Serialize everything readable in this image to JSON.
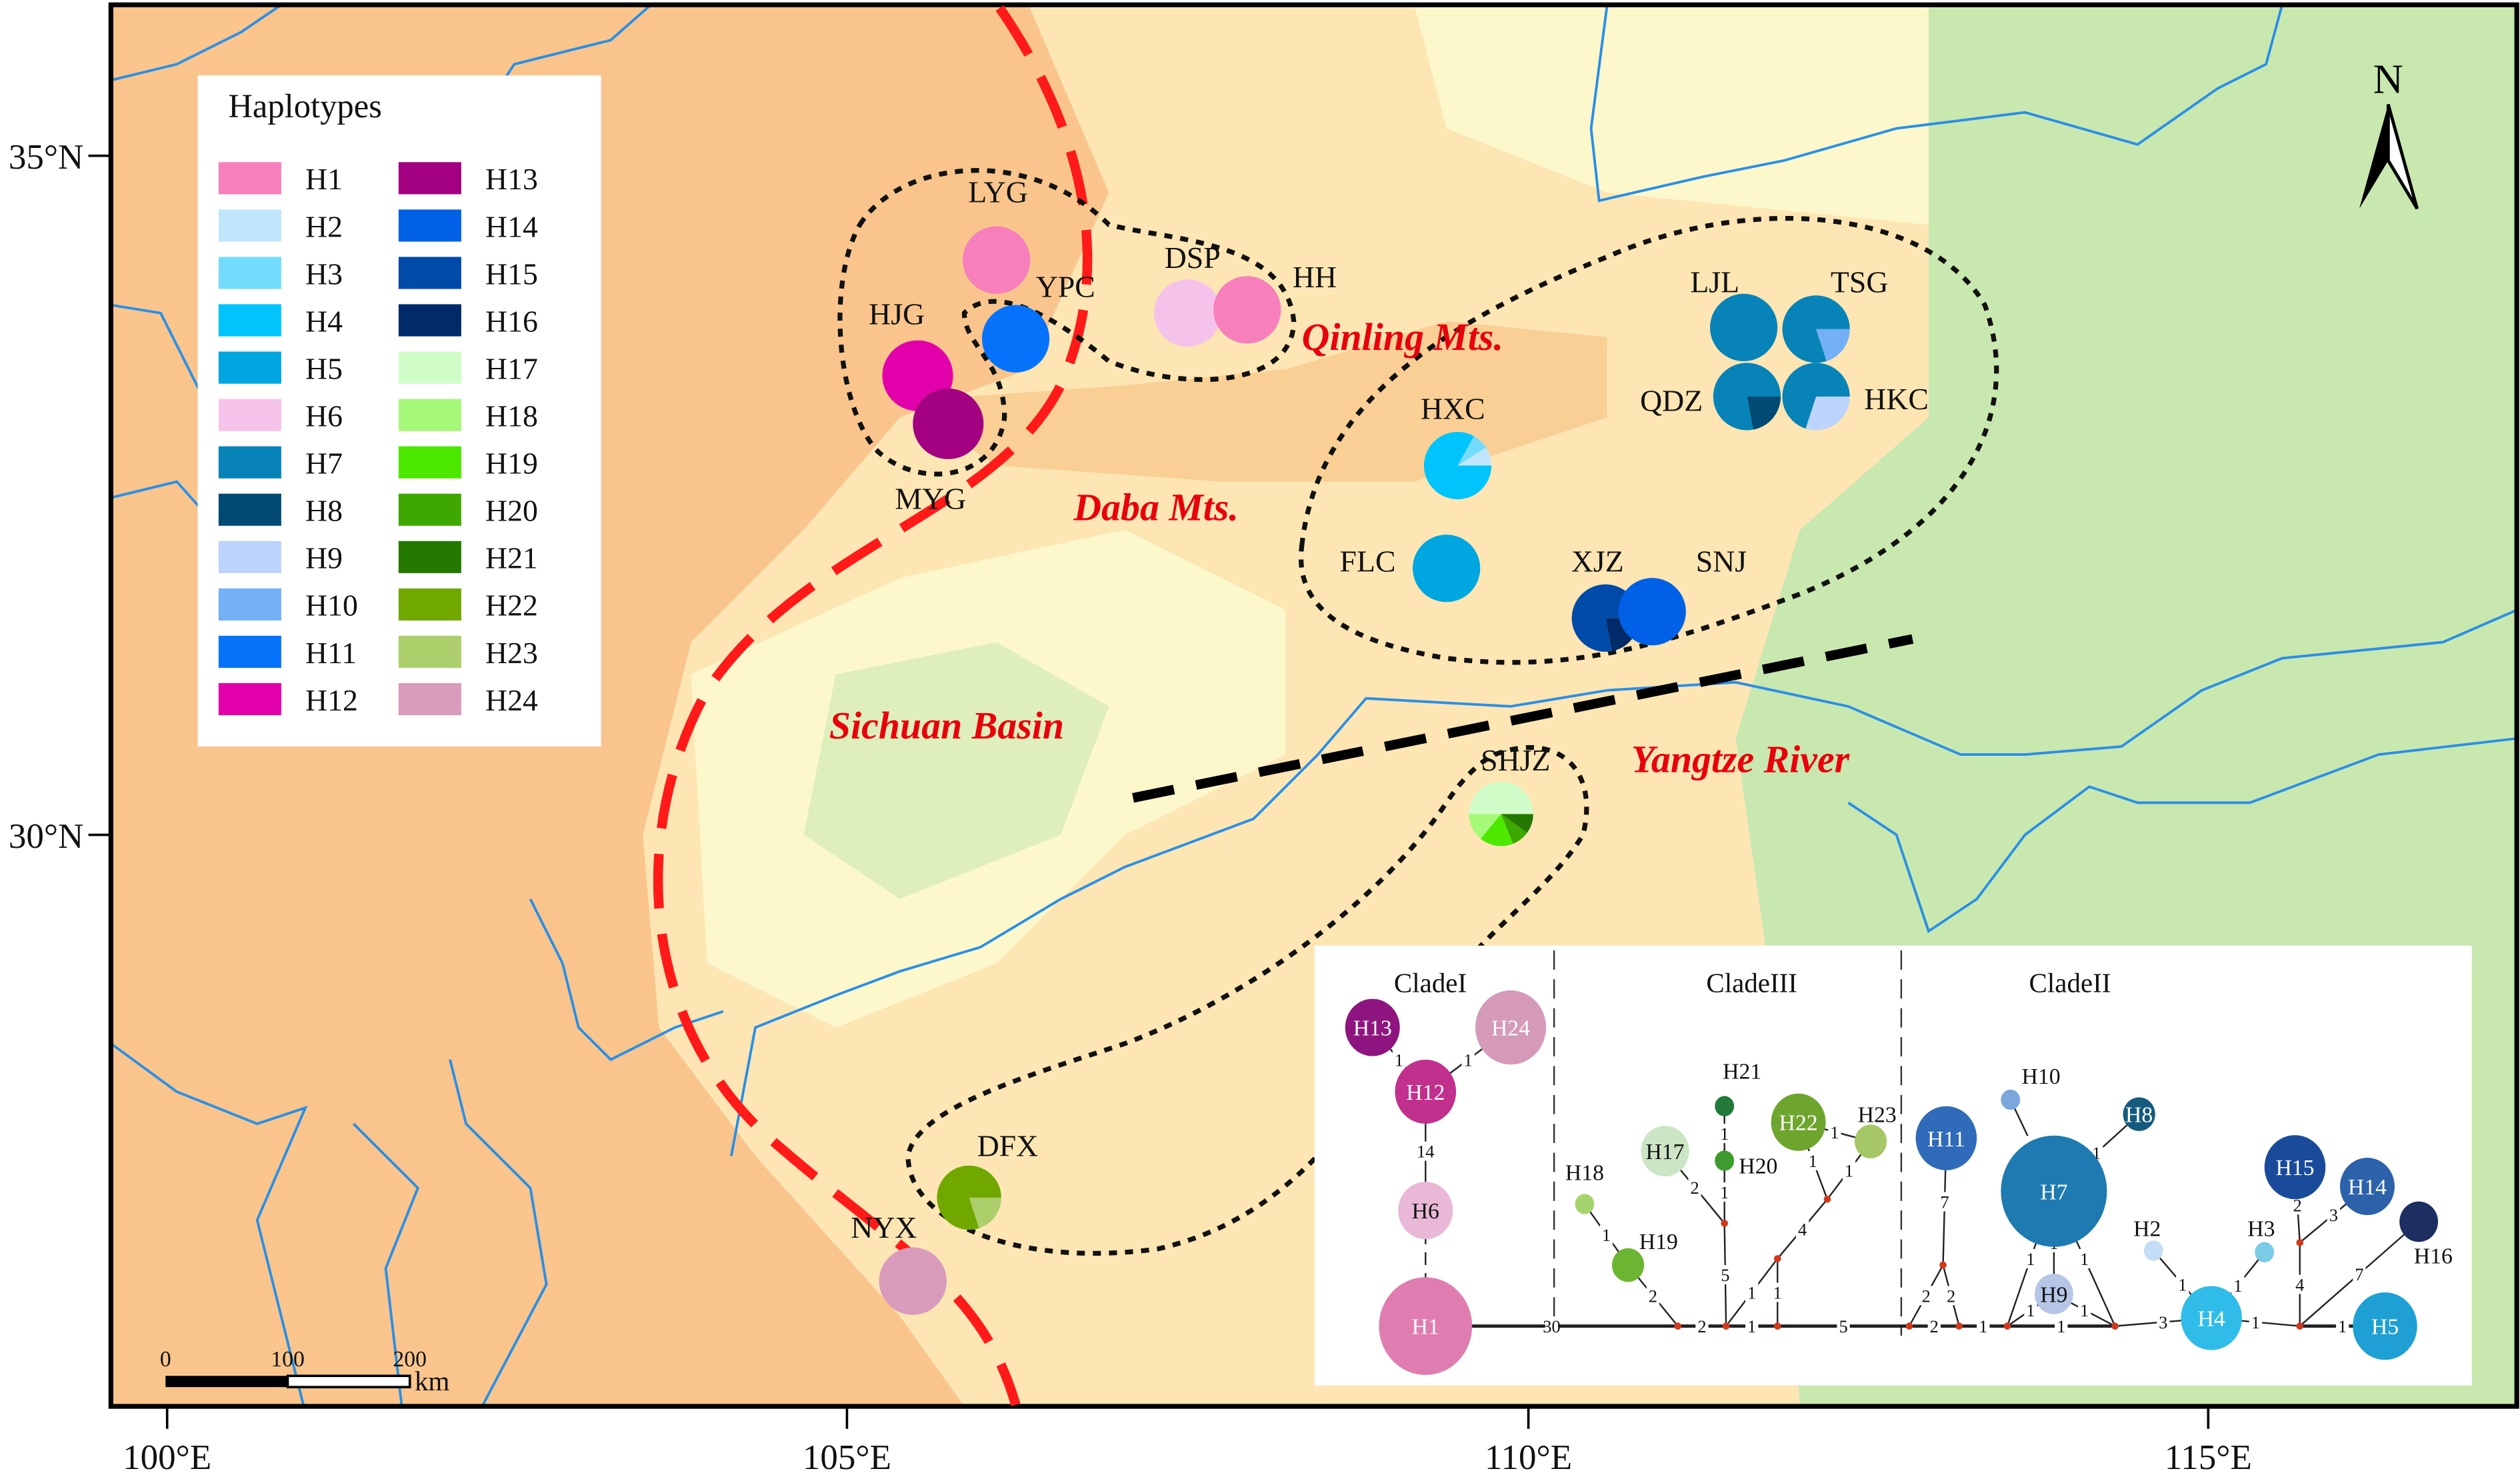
{
  "axes": {
    "lat_labels": [
      "35°N",
      "30°N"
    ],
    "lon_labels": [
      "100°E",
      "105°E",
      "110°E",
      "115°E"
    ]
  },
  "north_arrow": {
    "label": "N"
  },
  "scale_bar": {
    "labels": [
      "0",
      "100",
      "200"
    ],
    "unit": "km"
  },
  "region_labels": {
    "qinling": "Qinling Mts.",
    "daba": "Daba Mts.",
    "sichuan": "Sichuan Basin",
    "yangtze": "Yangtze River"
  },
  "colors": {
    "boundary_line": "#ff1a1a",
    "barrier_line": "#000000",
    "river": "#2a8fe6"
  },
  "legend": {
    "title": "Haplotypes",
    "haplotypes": [
      {
        "id": "H1",
        "color": "#f77fbc"
      },
      {
        "id": "H2",
        "color": "#bfe6fb"
      },
      {
        "id": "H3",
        "color": "#73dcfc"
      },
      {
        "id": "H4",
        "color": "#00c4fb"
      },
      {
        "id": "H5",
        "color": "#00a6e0"
      },
      {
        "id": "H6",
        "color": "#f5c3ea"
      },
      {
        "id": "H7",
        "color": "#0883b8"
      },
      {
        "id": "H8",
        "color": "#004a73"
      },
      {
        "id": "H9",
        "color": "#bcd3fb"
      },
      {
        "id": "H10",
        "color": "#73b0f5"
      },
      {
        "id": "H11",
        "color": "#0672fa"
      },
      {
        "id": "H12",
        "color": "#e200aa"
      },
      {
        "id": "H13",
        "color": "#a20080"
      },
      {
        "id": "H14",
        "color": "#0060e6"
      },
      {
        "id": "H15",
        "color": "#004aa8"
      },
      {
        "id": "H16",
        "color": "#002a68"
      },
      {
        "id": "H17",
        "color": "#d0fcc8"
      },
      {
        "id": "H18",
        "color": "#a6f878"
      },
      {
        "id": "H19",
        "color": "#4ce800"
      },
      {
        "id": "H20",
        "color": "#3ea800"
      },
      {
        "id": "H21",
        "color": "#247800"
      },
      {
        "id": "H22",
        "color": "#70a800"
      },
      {
        "id": "H23",
        "color": "#accf6c"
      },
      {
        "id": "H24",
        "color": "#d89bba"
      }
    ]
  },
  "sites": [
    {
      "name": "LYG",
      "composition": [
        {
          "haplotype": "H1",
          "fraction": 1
        }
      ]
    },
    {
      "name": "YPC",
      "composition": [
        {
          "haplotype": "H11",
          "fraction": 1
        }
      ]
    },
    {
      "name": "HJG",
      "composition": [
        {
          "haplotype": "H12",
          "fraction": 1
        }
      ]
    },
    {
      "name": "MYG",
      "composition": [
        {
          "haplotype": "H13",
          "fraction": 1
        }
      ]
    },
    {
      "name": "DSP",
      "composition": [
        {
          "haplotype": "H6",
          "fraction": 1
        }
      ]
    },
    {
      "name": "HH",
      "composition": [
        {
          "haplotype": "H1",
          "fraction": 1
        }
      ]
    },
    {
      "name": "LJL",
      "composition": [
        {
          "haplotype": "H7",
          "fraction": 1
        }
      ]
    },
    {
      "name": "TSG",
      "composition": [
        {
          "haplotype": "H10",
          "fraction": 0.2
        },
        {
          "haplotype": "H7",
          "fraction": 0.8
        }
      ]
    },
    {
      "name": "QDZ",
      "composition": [
        {
          "haplotype": "H8",
          "fraction": 0.22
        },
        {
          "haplotype": "H7",
          "fraction": 0.78
        }
      ]
    },
    {
      "name": "HKC",
      "composition": [
        {
          "haplotype": "H9",
          "fraction": 0.3
        },
        {
          "haplotype": "H7",
          "fraction": 0.7
        }
      ]
    },
    {
      "name": "HXC",
      "composition": [
        {
          "haplotype": "H4",
          "fraction": 0.83
        },
        {
          "haplotype": "H3",
          "fraction": 0.08
        },
        {
          "haplotype": "H2",
          "fraction": 0.09
        }
      ]
    },
    {
      "name": "FLC",
      "composition": [
        {
          "haplotype": "H5",
          "fraction": 1
        }
      ]
    },
    {
      "name": "XJZ",
      "composition": [
        {
          "haplotype": "H16",
          "fraction": 0.22
        },
        {
          "haplotype": "H15",
          "fraction": 0.78
        }
      ]
    },
    {
      "name": "SNJ",
      "composition": [
        {
          "haplotype": "H14",
          "fraction": 1
        }
      ]
    },
    {
      "name": "SHJZ",
      "composition": [
        {
          "haplotype": "H21",
          "fraction": 0.1
        },
        {
          "haplotype": "H20",
          "fraction": 0.09
        },
        {
          "haplotype": "H19",
          "fraction": 0.17
        },
        {
          "haplotype": "H18",
          "fraction": 0.14
        },
        {
          "haplotype": "H17",
          "fraction": 0.5
        }
      ]
    },
    {
      "name": "DFX",
      "composition": [
        {
          "haplotype": "H23",
          "fraction": 0.2
        },
        {
          "haplotype": "H22",
          "fraction": 0.8
        }
      ]
    },
    {
      "name": "NYX",
      "composition": [
        {
          "haplotype": "H24",
          "fraction": 1
        }
      ]
    }
  ],
  "network": {
    "clades": [
      "CladeI",
      "CladeIII",
      "CladeII"
    ],
    "nodes": [
      {
        "id": "H1",
        "color": "#e07db0"
      },
      {
        "id": "H6",
        "color": "#e8b8d6"
      },
      {
        "id": "H12",
        "color": "#c2308e"
      },
      {
        "id": "H13",
        "color": "#8e1580"
      },
      {
        "id": "H24",
        "color": "#d49ab8"
      },
      {
        "id": "H17",
        "color": "#cce5c4"
      },
      {
        "id": "H18",
        "color": "#a6d46c"
      },
      {
        "id": "H19",
        "color": "#6cb530"
      },
      {
        "id": "H20",
        "color": "#3e9c2e"
      },
      {
        "id": "H21",
        "color": "#217a3a"
      },
      {
        "id": "H22",
        "color": "#6ea52e"
      },
      {
        "id": "H23",
        "color": "#a6c766"
      },
      {
        "id": "H11",
        "color": "#2f6bb8"
      },
      {
        "id": "H7",
        "color": "#1e7ab0"
      },
      {
        "id": "H8",
        "color": "#165a7e"
      },
      {
        "id": "H9",
        "color": "#b5c6e6"
      },
      {
        "id": "H10",
        "color": "#7aa8dc"
      },
      {
        "id": "H2",
        "color": "#c3def4"
      },
      {
        "id": "H3",
        "color": "#7ccbe6"
      },
      {
        "id": "H4",
        "color": "#30bce8"
      },
      {
        "id": "H5",
        "color": "#1ea0d4"
      },
      {
        "id": "H14",
        "color": "#2c62aa"
      },
      {
        "id": "H15",
        "color": "#1a4b9a"
      },
      {
        "id": "H16",
        "color": "#1c2f60"
      }
    ],
    "edges": [
      {
        "from": "H1",
        "to": "mv1",
        "mutations": "30"
      },
      {
        "from": "mv1",
        "to": "mv2",
        "mutations": "2"
      },
      {
        "from": "mv2",
        "to": "mv3",
        "mutations": "1"
      },
      {
        "from": "mv3",
        "to": "mv4",
        "mutations": "5"
      },
      {
        "from": "mv4",
        "to": "mv5",
        "mutations": "2"
      },
      {
        "from": "mv5",
        "to": "mv6",
        "mutations": "1"
      },
      {
        "from": "mv6",
        "to": "mv7",
        "mutations": "1"
      },
      {
        "from": "mv7",
        "to": "H4",
        "mutations": "3"
      },
      {
        "from": "H4",
        "to": "mv8",
        "mutations": "1"
      },
      {
        "from": "mv8",
        "to": "H5",
        "mutations": "1"
      },
      {
        "from": "H19",
        "to": "mv1",
        "mutations": "2"
      },
      {
        "from": "H18",
        "to": "H19",
        "mutations": "1"
      },
      {
        "from": "H17",
        "to": "mvA",
        "mutations": "2"
      },
      {
        "from": "H21",
        "to": "H20",
        "mutations": "1"
      },
      {
        "from": "H20",
        "to": "mvA",
        "mutations": "1"
      },
      {
        "from": "mvA",
        "to": "mv2",
        "mutations": "5"
      },
      {
        "from": "mv2",
        "to": "mvB",
        "mutations": "1"
      },
      {
        "from": "mv3",
        "to": "mvB",
        "mutations": "1"
      },
      {
        "from": "mvB",
        "to": "mvC",
        "mutations": "4"
      },
      {
        "from": "mvC",
        "to": "H22",
        "mutations": "1"
      },
      {
        "from": "mvC",
        "to": "H23",
        "mutations": "1"
      },
      {
        "from": "H22",
        "to": "H23",
        "mutations": "1"
      },
      {
        "from": "H11",
        "to": "mvD",
        "mutations": "7"
      },
      {
        "from": "mvD",
        "to": "mv4",
        "mutations": "2"
      },
      {
        "from": "mvD",
        "to": "mv5",
        "mutations": "2"
      },
      {
        "from": "H7",
        "to": "mv6",
        "mutations": "1"
      },
      {
        "from": "H7",
        "to": "mv7",
        "mutations": "1"
      },
      {
        "from": "H7",
        "to": "H9",
        "mutations": "1"
      },
      {
        "from": "H9",
        "to": "mv6",
        "mutations": "1"
      },
      {
        "from": "H9",
        "to": "mv7",
        "mutations": "1"
      },
      {
        "from": "H10",
        "to": "H7",
        "mutations": "1"
      },
      {
        "from": "H8",
        "to": "H7",
        "mutations": "1"
      },
      {
        "from": "H2",
        "to": "H4",
        "mutations": "1"
      },
      {
        "from": "H3",
        "to": "H4",
        "mutations": "1"
      },
      {
        "from": "mv8",
        "to": "mvE",
        "mutations": "4"
      },
      {
        "from": "mvE",
        "to": "H15",
        "mutations": "2"
      },
      {
        "from": "mvE",
        "to": "H14",
        "mutations": "3"
      },
      {
        "from": "mv8",
        "to": "H16",
        "mutations": "7"
      },
      {
        "from": "H13",
        "to": "H12",
        "mutations": "1"
      },
      {
        "from": "H24",
        "to": "H12",
        "mutations": "1"
      },
      {
        "from": "H12",
        "to": "H6",
        "mutations": "14"
      },
      {
        "from": "H6",
        "to": "H1",
        "mutations": ""
      }
    ]
  }
}
